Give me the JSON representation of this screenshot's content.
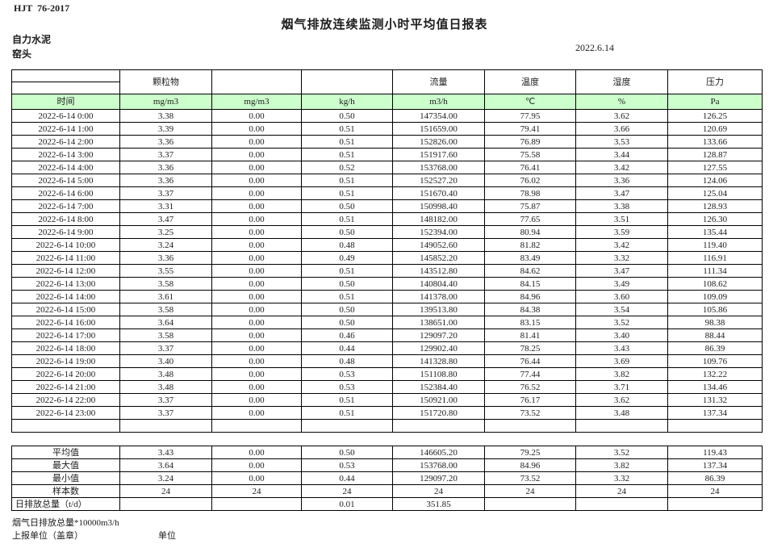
{
  "page": {
    "doc_code": "HJT  76-2017",
    "title": "烟气排放连续监测小时平均值日报表",
    "company": "自力水泥",
    "location": "窑头",
    "date": "2022.6.14"
  },
  "colors": {
    "header_green": "#ccffcc",
    "border": "#000000",
    "text": "#1c1c1c"
  },
  "table": {
    "group_headers": [
      "",
      "颗粒物",
      "",
      "",
      "流量",
      "温度",
      "湿度",
      "压力"
    ],
    "unit_row": [
      "时间",
      "mg/m3",
      "mg/m3",
      "kg/h",
      "m3/h",
      "℃",
      "%",
      "Pa"
    ],
    "rows": [
      [
        "2022-6-14 0:00",
        "3.38",
        "0.00",
        "0.50",
        "147354.00",
        "77.95",
        "3.62",
        "126.25"
      ],
      [
        "2022-6-14 1:00",
        "3.39",
        "0.00",
        "0.51",
        "151659.00",
        "79.41",
        "3.66",
        "120.69"
      ],
      [
        "2022-6-14 2:00",
        "3.36",
        "0.00",
        "0.51",
        "152826.00",
        "76.89",
        "3.53",
        "133.66"
      ],
      [
        "2022-6-14 3:00",
        "3.37",
        "0.00",
        "0.51",
        "151917.60",
        "75.58",
        "3.44",
        "128.87"
      ],
      [
        "2022-6-14 4:00",
        "3.36",
        "0.00",
        "0.52",
        "153768.00",
        "76.41",
        "3.42",
        "127.55"
      ],
      [
        "2022-6-14 5:00",
        "3.36",
        "0.00",
        "0.51",
        "152527.20",
        "76.02",
        "3.36",
        "124.06"
      ],
      [
        "2022-6-14 6:00",
        "3.37",
        "0.00",
        "0.51",
        "151670.40",
        "78.98",
        "3.47",
        "125.04"
      ],
      [
        "2022-6-14 7:00",
        "3.31",
        "0.00",
        "0.50",
        "150998.40",
        "75.87",
        "3.38",
        "128.93"
      ],
      [
        "2022-6-14 8:00",
        "3.47",
        "0.00",
        "0.51",
        "148182.00",
        "77.65",
        "3.51",
        "126.30"
      ],
      [
        "2022-6-14 9:00",
        "3.25",
        "0.00",
        "0.50",
        "152394.00",
        "80.94",
        "3.59",
        "135.44"
      ],
      [
        "2022-6-14 10:00",
        "3.24",
        "0.00",
        "0.48",
        "149052.60",
        "81.82",
        "3.42",
        "119.40"
      ],
      [
        "2022-6-14 11:00",
        "3.36",
        "0.00",
        "0.49",
        "145852.20",
        "83.49",
        "3.32",
        "116.91"
      ],
      [
        "2022-6-14 12:00",
        "3.55",
        "0.00",
        "0.51",
        "143512.80",
        "84.62",
        "3.47",
        "111.34"
      ],
      [
        "2022-6-14 13:00",
        "3.58",
        "0.00",
        "0.50",
        "140804.40",
        "84.15",
        "3.49",
        "108.62"
      ],
      [
        "2022-6-14 14:00",
        "3.61",
        "0.00",
        "0.51",
        "141378.00",
        "84.96",
        "3.60",
        "109.09"
      ],
      [
        "2022-6-14 15:00",
        "3.58",
        "0.00",
        "0.50",
        "139513.80",
        "84.38",
        "3.54",
        "105.86"
      ],
      [
        "2022-6-14 16:00",
        "3.64",
        "0.00",
        "0.50",
        "138651.00",
        "83.15",
        "3.52",
        "98.38"
      ],
      [
        "2022-6-14 17:00",
        "3.58",
        "0.00",
        "0.46",
        "129097.20",
        "81.41",
        "3.40",
        "88.44"
      ],
      [
        "2022-6-14 18:00",
        "3.37",
        "0.00",
        "0.44",
        "129902.40",
        "78.25",
        "3.43",
        "86.39"
      ],
      [
        "2022-6-14 19:00",
        "3.40",
        "0.00",
        "0.48",
        "141328.80",
        "76.44",
        "3.69",
        "109.76"
      ],
      [
        "2022-6-14 20:00",
        "3.48",
        "0.00",
        "0.53",
        "151108.80",
        "77.44",
        "3.82",
        "132.22"
      ],
      [
        "2022-6-14 21:00",
        "3.48",
        "0.00",
        "0.53",
        "152384.40",
        "76.52",
        "3.71",
        "134.46"
      ],
      [
        "2022-6-14 22:00",
        "3.37",
        "0.00",
        "0.51",
        "150921.00",
        "76.17",
        "3.62",
        "131.32"
      ],
      [
        "2022-6-14 23:00",
        "3.37",
        "0.00",
        "0.51",
        "151720.80",
        "73.52",
        "3.48",
        "137.34"
      ],
      [
        "",
        "",
        "",
        "",
        "",
        "",
        "",
        ""
      ]
    ],
    "summary_rows": [
      [
        "平均值",
        "3.43",
        "0.00",
        "0.50",
        "146605.20",
        "79.25",
        "3.52",
        "119.43"
      ],
      [
        "最大值",
        "3.64",
        "0.00",
        "0.53",
        "153768.00",
        "84.96",
        "3.82",
        "137.34"
      ],
      [
        "最小值",
        "3.24",
        "0.00",
        "0.44",
        "129097.20",
        "73.52",
        "3.32",
        "86.39"
      ],
      [
        "样本数",
        "24",
        "24",
        "24",
        "24",
        "24",
        "24",
        "24"
      ],
      [
        "日排放总量（t/d）",
        "",
        "",
        "0.01",
        "351.85",
        "",
        "",
        ""
      ]
    ]
  },
  "footer": {
    "note": "烟气日排放总量*10000m3/h",
    "report_unit_label": "上报单位（盖章）",
    "unit_label": "单位"
  }
}
